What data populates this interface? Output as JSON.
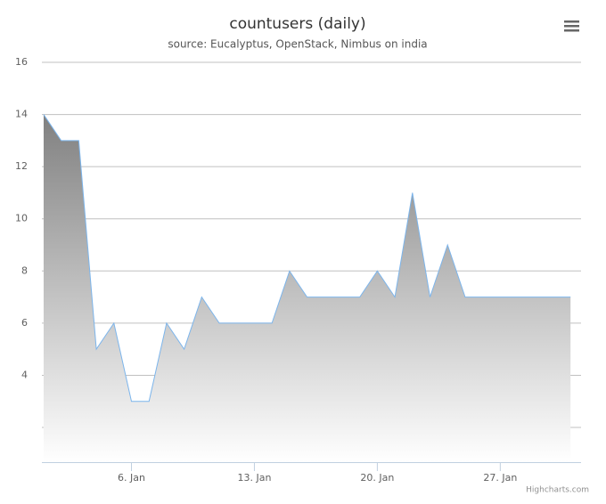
{
  "chart_data": {
    "type": "area",
    "title": "countusers (daily)",
    "subtitle": "source: Eucalyptus, OpenStack, Nimbus on india",
    "credits": "Highcharts.com",
    "x": [
      1,
      2,
      3,
      4,
      5,
      6,
      7,
      8,
      9,
      10,
      11,
      12,
      13,
      14,
      15,
      16,
      17,
      18,
      19,
      20,
      21,
      22,
      23,
      24,
      25,
      26,
      27,
      28,
      29,
      30,
      31
    ],
    "series": [
      {
        "color": "#7cb5ec",
        "values": [
          14,
          13,
          13,
          5,
          6,
          3,
          3,
          6,
          5,
          7,
          6,
          6,
          6,
          6,
          8,
          7,
          7,
          7,
          7,
          8,
          7,
          11,
          7,
          9,
          7,
          7,
          7,
          7,
          7,
          7,
          7
        ]
      }
    ],
    "xlim": [
      0.9,
      31.6
    ],
    "xticks": [
      {
        "value": 6,
        "label": "6. Jan"
      },
      {
        "value": 13,
        "label": "13. Jan"
      },
      {
        "value": 20,
        "label": "20. Jan"
      },
      {
        "value": 27,
        "label": "27. Jan"
      }
    ],
    "ylim": [
      0.67,
      16
    ],
    "yticks": [
      {
        "value": 2,
        "label": null
      },
      4,
      6,
      8,
      10,
      12,
      14,
      16
    ],
    "grid": true
  }
}
